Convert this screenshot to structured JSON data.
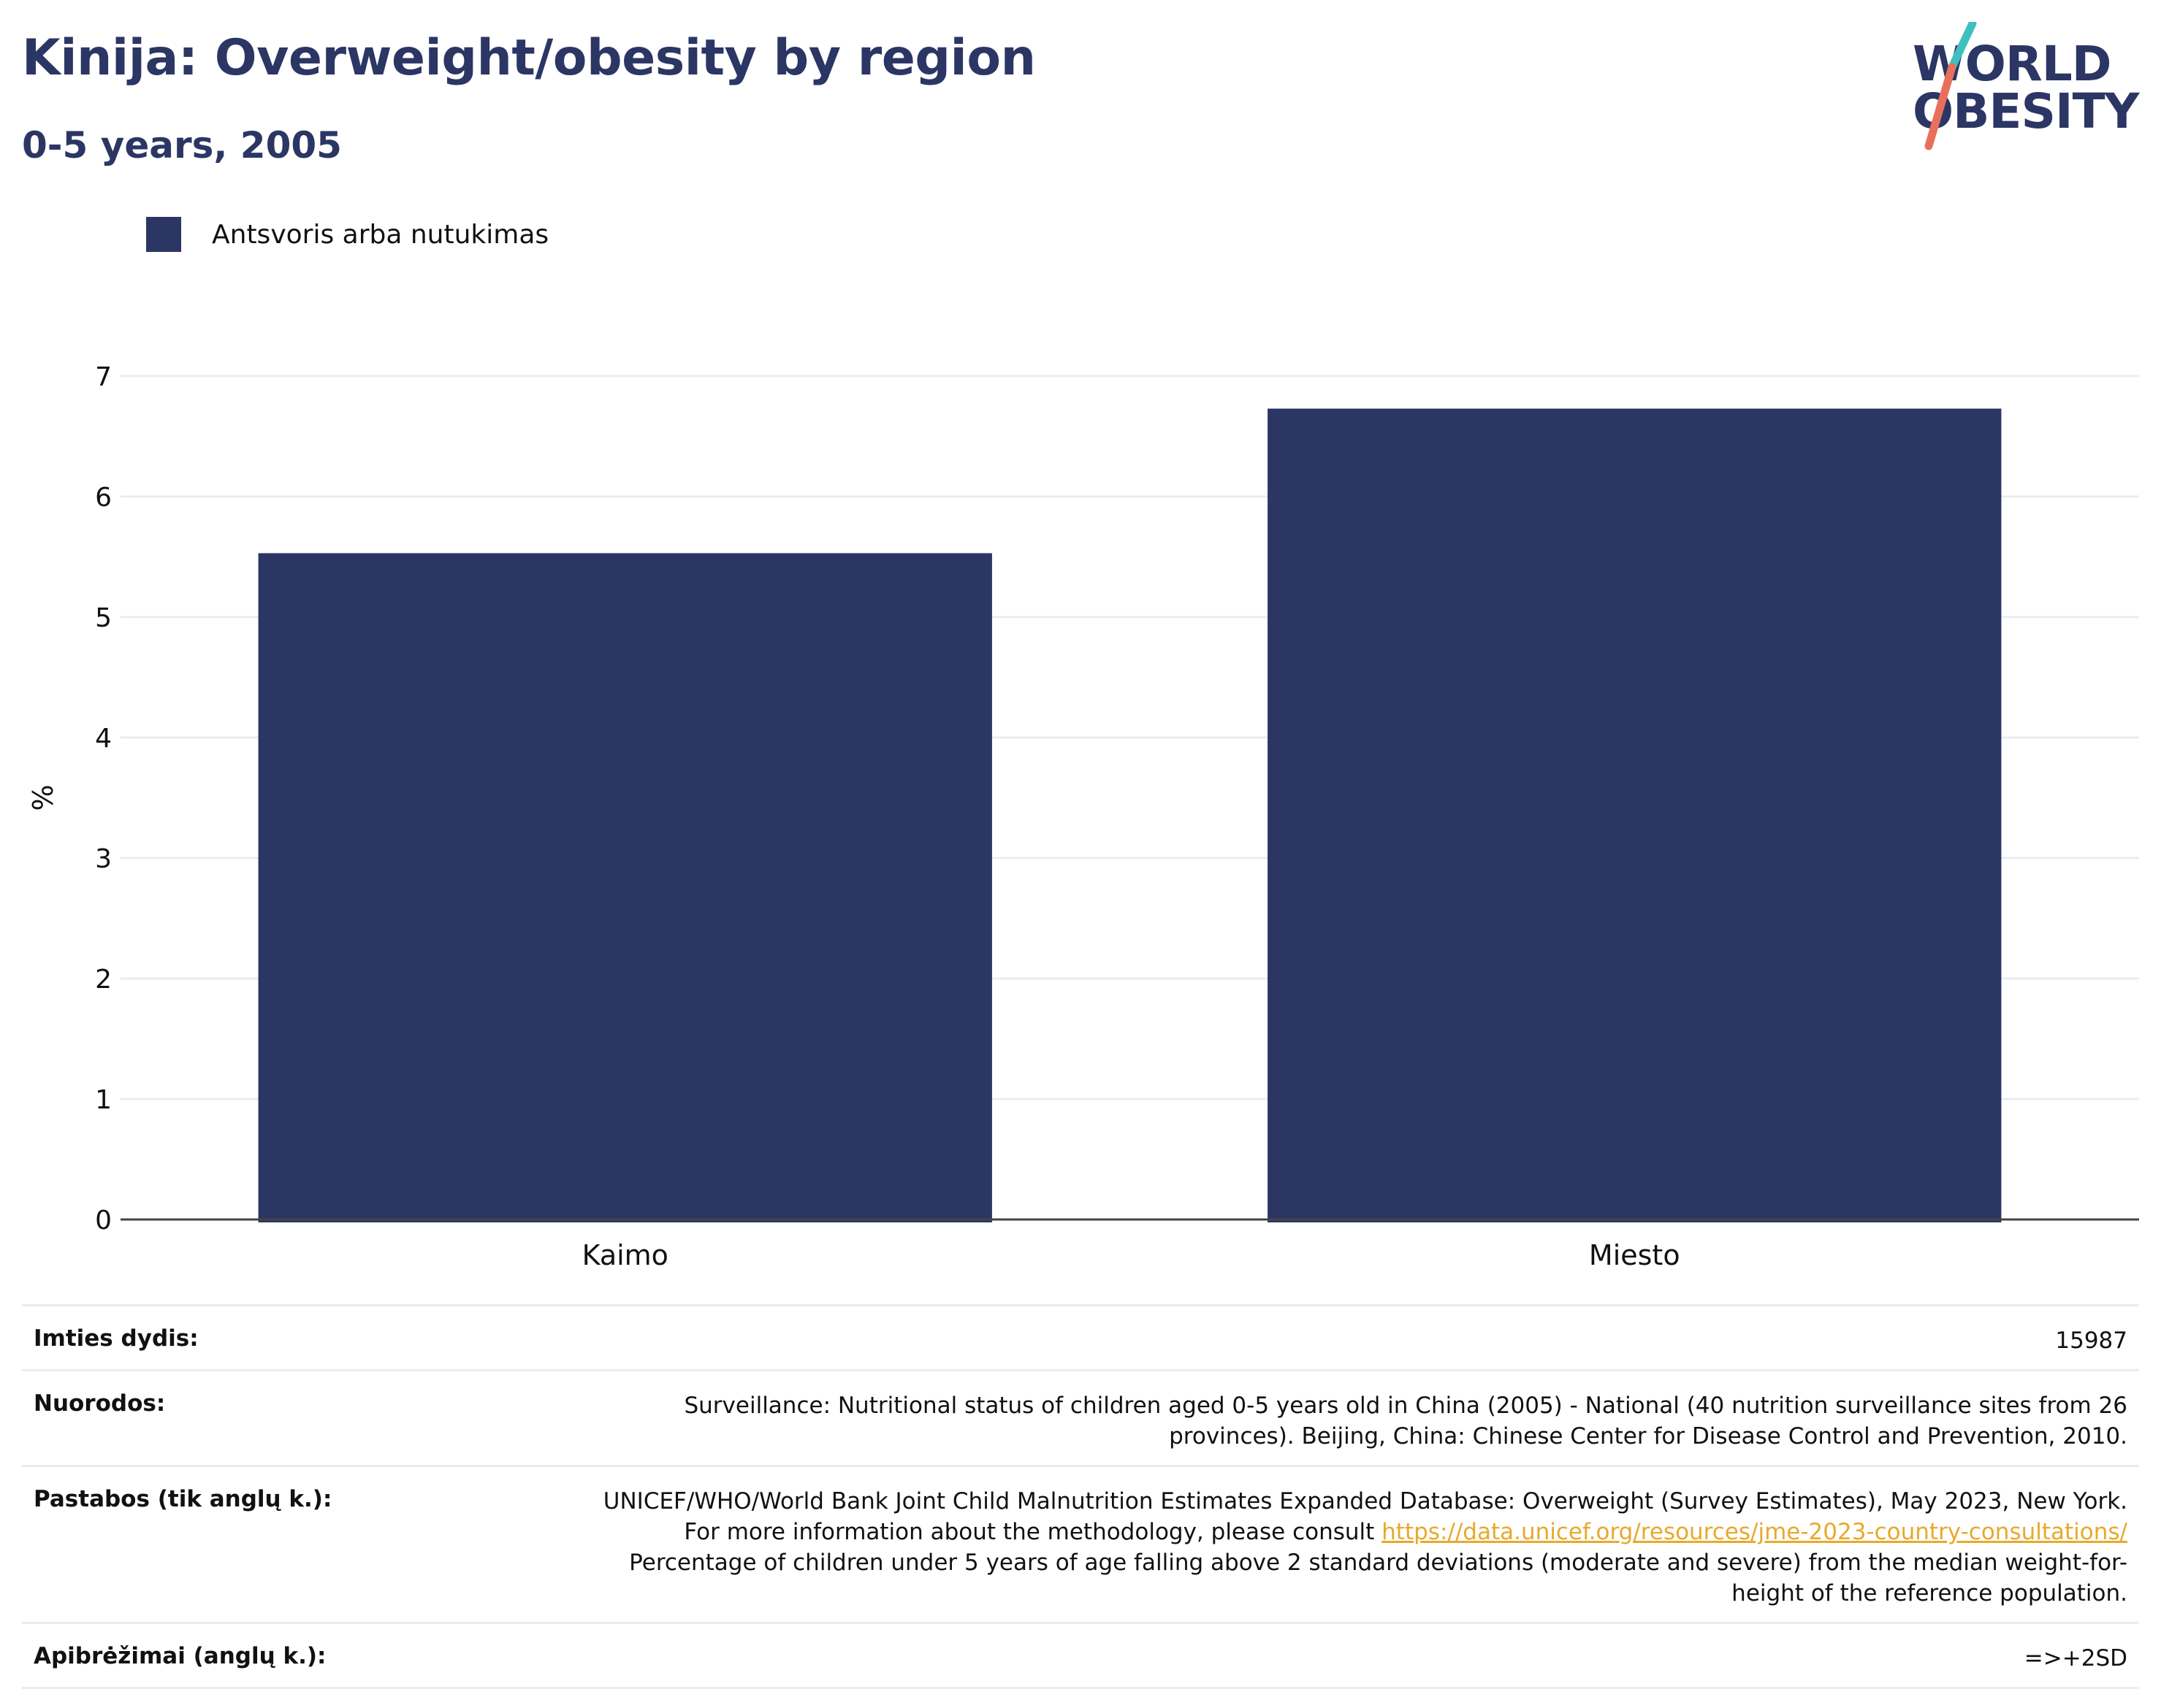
{
  "header": {
    "title": "Kinija: Overweight/obesity by region",
    "subtitle": "0-5 years, 2005"
  },
  "logo": {
    "line1": "WORLD",
    "line2": "OBESITY"
  },
  "colors": {
    "bar": "#2b3664",
    "accent_teal": "#3fbfbf",
    "accent_coral": "#e8705a",
    "link": "#e8a92a"
  },
  "chart_data": {
    "type": "bar",
    "categories": [
      "Kaimo",
      "Miesto"
    ],
    "series": [
      {
        "name": "Antsvoris arba nutukimas",
        "values": [
          5.53,
          6.73
        ]
      }
    ],
    "ylabel": "%",
    "ylim": [
      0,
      7
    ],
    "yticks": [
      0,
      1,
      2,
      3,
      4,
      5,
      6,
      7
    ],
    "grid": true,
    "legend": "top-left"
  },
  "info": {
    "sample_label": "Imties dydis:",
    "sample_value": "15987",
    "refs_label": "Nuorodos:",
    "refs_value": "Surveillance: Nutritional status of children aged 0-5 years old in China (2005) - National (40 nutrition surveillance sites from 26 provinces). Beijing, China: Chinese Center for Disease Control and Prevention, 2010.",
    "notes_label": "Pastabos (tik anglų k.):",
    "notes_text1": "UNICEF/WHO/World Bank Joint Child Malnutrition Estimates Expanded Database: Overweight (Survey Estimates), May 2023, New York. For more information about the methodology, please consult ",
    "notes_link": "https://data.unicef.org/resources/jme-2023-country-consultations/",
    "notes_text2": " Percentage of children under 5 years of age falling above 2 standard deviations (moderate and severe) from the median weight-for-height of the reference population.",
    "defs_label": "Apibrėžimai (anglų k.):",
    "defs_value": "=>+2SD"
  }
}
